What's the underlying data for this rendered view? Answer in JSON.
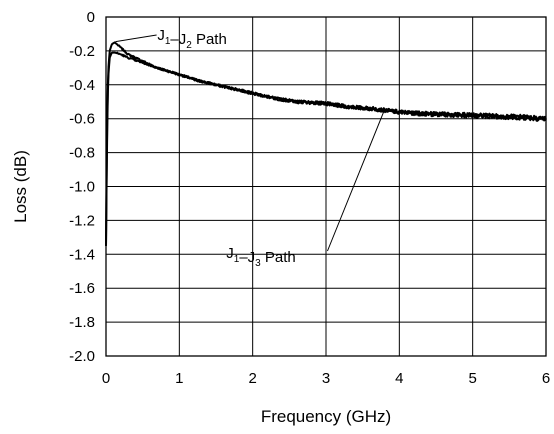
{
  "chart_data": {
    "type": "line",
    "title": "",
    "xlabel": "Frequency (GHz)",
    "ylabel": "Loss (dB)",
    "xlim": [
      0,
      6
    ],
    "ylim": [
      -2.0,
      0
    ],
    "grid": true,
    "legend": "none",
    "x_ticks": [
      0,
      1,
      2,
      3,
      4,
      5,
      6
    ],
    "x_tick_labels": [
      "0",
      "1",
      "2",
      "3",
      "4",
      "5",
      "6"
    ],
    "y_ticks": [
      0,
      -0.2,
      -0.4,
      -0.6,
      -0.8,
      -1.0,
      -1.2,
      -1.4,
      -1.6,
      -1.8,
      -2.0
    ],
    "y_tick_labels": [
      "0",
      "-0.2",
      "-0.4",
      "-0.6",
      "-0.8",
      "-1.0",
      "-1.2",
      "-1.4",
      "-1.6",
      "-1.8",
      "-2.0"
    ],
    "series": [
      {
        "x": [
          0.0,
          0.01,
          0.02,
          0.03,
          0.05,
          0.08,
          0.12,
          0.2,
          0.3,
          0.5,
          0.7,
          1.0,
          1.3,
          1.6,
          2.0,
          2.3,
          2.6,
          3.0,
          3.3,
          3.6,
          4.0,
          4.3,
          4.6,
          5.0,
          5.3,
          5.6,
          6.0
        ],
        "y": [
          -1.35,
          -0.85,
          -0.5,
          -0.32,
          -0.2,
          -0.16,
          -0.15,
          -0.18,
          -0.22,
          -0.26,
          -0.3,
          -0.34,
          -0.38,
          -0.41,
          -0.45,
          -0.48,
          -0.5,
          -0.51,
          -0.53,
          -0.54,
          -0.56,
          -0.57,
          -0.575,
          -0.58,
          -0.585,
          -0.59,
          -0.6
        ]
      },
      {
        "x": [
          0.0,
          0.01,
          0.02,
          0.03,
          0.05,
          0.08,
          0.12,
          0.2,
          0.3,
          0.5,
          0.7,
          1.0,
          1.3,
          1.6,
          2.0,
          2.3,
          2.6,
          3.0,
          3.3,
          3.6,
          4.0,
          4.3,
          4.6,
          5.0,
          5.3,
          5.6,
          6.0
        ],
        "y": [
          -1.35,
          -0.9,
          -0.55,
          -0.36,
          -0.24,
          -0.21,
          -0.21,
          -0.22,
          -0.24,
          -0.27,
          -0.3,
          -0.34,
          -0.38,
          -0.41,
          -0.45,
          -0.48,
          -0.5,
          -0.51,
          -0.53,
          -0.54,
          -0.56,
          -0.57,
          -0.575,
          -0.58,
          -0.585,
          -0.59,
          -0.6
        ]
      }
    ],
    "annotations": [
      {
        "text": "J1–J2 Path",
        "parts": [
          [
            "J",
            "1",
            ""
          ],
          [
            "–J",
            "2",
            " Path"
          ]
        ],
        "x": 0.15,
        "y": -0.15
      },
      {
        "text": "J1–J3 Path",
        "parts": [
          [
            "J",
            "1",
            ""
          ],
          [
            "–J",
            "3",
            " Path"
          ]
        ],
        "x": 3.8,
        "y": -0.53
      }
    ]
  }
}
